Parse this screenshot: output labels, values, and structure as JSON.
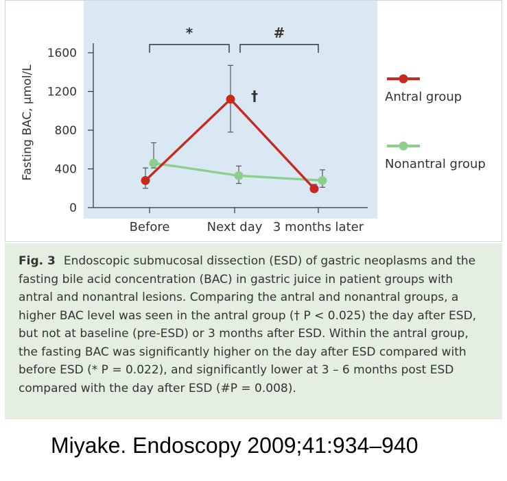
{
  "chart_data": {
    "type": "line",
    "ylabel": "Fasting BAC, µmol/L",
    "xlabel": "",
    "categories": [
      "Before",
      "Next day",
      "3 months later"
    ],
    "yticks": [
      0,
      400,
      800,
      1200,
      1600
    ],
    "ylim": [
      0,
      1750
    ],
    "series": [
      {
        "name": "Antral group",
        "color": "#c8281e",
        "values": [
          280,
          1120,
          195
        ],
        "error_low": [
          200,
          780,
          160
        ],
        "error_high": [
          410,
          1470,
          240
        ]
      },
      {
        "name": "Nonantral group",
        "color": "#8ccf8a",
        "values": [
          460,
          330,
          280
        ],
        "error_low": [
          410,
          250,
          210
        ],
        "error_high": [
          670,
          430,
          390
        ]
      }
    ],
    "point_annotations": [
      {
        "series": "Antral group",
        "category": "Next day",
        "text": "†"
      }
    ],
    "significance_brackets": [
      {
        "from": "Before",
        "to": "Next day",
        "label": "*"
      },
      {
        "from": "Next day",
        "to": "3 months later",
        "label": "#"
      }
    ],
    "legend_position": "right",
    "plot_background": "#d9e8f2",
    "grid": false
  },
  "caption": {
    "label": "Fig. 3",
    "text": "Endoscopic submucosal dissection (ESD) of gastric neoplasms and the fasting bile acid concentration (BAC) in gastric juice in patient groups with antral and nonantral lesions. Comparing the antral and nonantral groups, a higher BAC level was seen in the antral group († P < 0.025) the day after ESD, but not at baseline (pre-ESD) or 3 months after ESD. Within the antral group, the fasting BAC was significantly higher on the day after ESD compared with before ESD (* P = 0.022), and significantly lower at 3 – 6 months post ESD compared with the day after ESD (#P = 0.008)."
  },
  "citation": "Miyake. Endoscopy 2009;41:934–940",
  "colors": {
    "caption_background": "#e4efe1",
    "plot_background": "#d9e8f2",
    "antral": "#c8281e",
    "nonantral": "#8ccf8a"
  }
}
